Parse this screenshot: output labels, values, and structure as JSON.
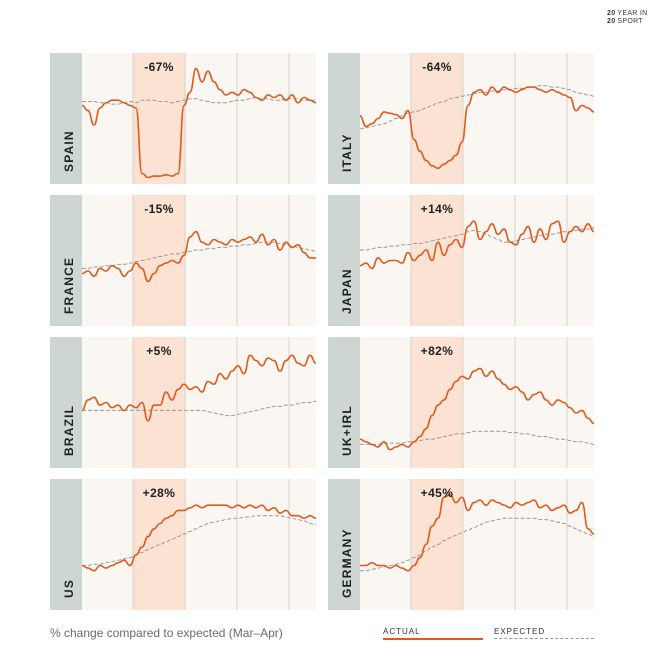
{
  "brand": {
    "line1_num": "20",
    "line1_text": "YEAR IN",
    "line2_num": "20",
    "line2_text": "SPORT"
  },
  "caption": "% change compared to expected (Mar–Apr)",
  "legend": {
    "actual": "ACTUAL",
    "expected": "EXPECTED"
  },
  "colors": {
    "actual": "#e05a1e",
    "expected": "#9a9a9a",
    "highlight": "#fbe2d3",
    "panel_bg": "#faf6f1",
    "label_bar": "#cdd6d3",
    "gridline": "#d6d1cb"
  },
  "chart_data": [
    {
      "type": "line",
      "title": "SPAIN",
      "change_label": "-67%",
      "series": [
        {
          "name": "ACTUAL",
          "values": [
            0.6,
            0.56,
            0.45,
            0.58,
            0.62,
            0.64,
            0.64,
            0.62,
            0.6,
            0.58,
            0.08,
            0.05,
            0.06,
            0.06,
            0.07,
            0.06,
            0.08,
            0.6,
            0.7,
            0.88,
            0.78,
            0.86,
            0.78,
            0.72,
            0.68,
            0.7,
            0.68,
            0.72,
            0.7,
            0.66,
            0.64,
            0.68,
            0.66,
            0.68,
            0.64,
            0.68,
            0.62,
            0.66,
            0.64,
            0.62
          ]
        },
        {
          "name": "EXPECTED",
          "values": [
            0.63,
            0.63,
            0.63,
            0.62,
            0.62,
            0.61,
            0.61,
            0.62,
            0.63,
            0.62,
            0.64,
            0.64,
            0.64,
            0.63,
            0.63,
            0.62,
            0.63,
            0.64,
            0.65,
            0.65,
            0.64,
            0.63,
            0.62,
            0.62,
            0.62,
            0.63,
            0.64,
            0.64,
            0.65,
            0.66,
            0.65,
            0.65,
            0.64,
            0.64,
            0.65,
            0.65,
            0.65,
            0.64,
            0.64,
            0.64
          ]
        }
      ]
    },
    {
      "type": "line",
      "title": "ITALY",
      "change_label": "-64%",
      "series": [
        {
          "name": "ACTUAL",
          "values": [
            0.52,
            0.44,
            0.46,
            0.5,
            0.55,
            0.54,
            0.53,
            0.5,
            0.56,
            0.34,
            0.25,
            0.18,
            0.14,
            0.12,
            0.15,
            0.18,
            0.22,
            0.32,
            0.6,
            0.7,
            0.72,
            0.68,
            0.74,
            0.7,
            0.74,
            0.72,
            0.7,
            0.72,
            0.74,
            0.74,
            0.72,
            0.7,
            0.72,
            0.7,
            0.68,
            0.66,
            0.56,
            0.6,
            0.58,
            0.55
          ]
        },
        {
          "name": "EXPECTED",
          "values": [
            0.42,
            0.43,
            0.44,
            0.45,
            0.46,
            0.48,
            0.5,
            0.52,
            0.54,
            0.55,
            0.56,
            0.58,
            0.6,
            0.62,
            0.63,
            0.65,
            0.66,
            0.67,
            0.68,
            0.69,
            0.7,
            0.7,
            0.71,
            0.71,
            0.72,
            0.72,
            0.73,
            0.73,
            0.74,
            0.74,
            0.75,
            0.75,
            0.74,
            0.74,
            0.73,
            0.72,
            0.7,
            0.69,
            0.68,
            0.67
          ]
        }
      ]
    },
    {
      "type": "line",
      "title": "FRANCE",
      "change_label": "-15%",
      "series": [
        {
          "name": "ACTUAL",
          "values": [
            0.4,
            0.42,
            0.38,
            0.44,
            0.42,
            0.46,
            0.44,
            0.38,
            0.42,
            0.48,
            0.44,
            0.34,
            0.4,
            0.46,
            0.48,
            0.5,
            0.48,
            0.54,
            0.68,
            0.72,
            0.64,
            0.62,
            0.66,
            0.64,
            0.62,
            0.66,
            0.64,
            0.66,
            0.68,
            0.64,
            0.7,
            0.62,
            0.66,
            0.58,
            0.64,
            0.6,
            0.62,
            0.56,
            0.52,
            0.52
          ]
        },
        {
          "name": "EXPECTED",
          "values": [
            0.44,
            0.44,
            0.45,
            0.45,
            0.46,
            0.46,
            0.47,
            0.47,
            0.48,
            0.49,
            0.5,
            0.51,
            0.52,
            0.53,
            0.54,
            0.55,
            0.55,
            0.56,
            0.57,
            0.58,
            0.58,
            0.59,
            0.59,
            0.6,
            0.6,
            0.61,
            0.61,
            0.62,
            0.62,
            0.63,
            0.64,
            0.64,
            0.64,
            0.63,
            0.62,
            0.61,
            0.6,
            0.59,
            0.58,
            0.57
          ]
        }
      ]
    },
    {
      "type": "line",
      "title": "JAPAN",
      "change_label": "+14%",
      "series": [
        {
          "name": "ACTUAL",
          "values": [
            0.46,
            0.48,
            0.44,
            0.52,
            0.48,
            0.5,
            0.5,
            0.48,
            0.56,
            0.5,
            0.54,
            0.58,
            0.5,
            0.64,
            0.54,
            0.62,
            0.66,
            0.6,
            0.76,
            0.8,
            0.66,
            0.72,
            0.78,
            0.7,
            0.74,
            0.64,
            0.62,
            0.7,
            0.76,
            0.64,
            0.74,
            0.66,
            0.78,
            0.8,
            0.64,
            0.72,
            0.76,
            0.72,
            0.78,
            0.72
          ]
        },
        {
          "name": "EXPECTED",
          "values": [
            0.58,
            0.58,
            0.59,
            0.6,
            0.6,
            0.61,
            0.61,
            0.62,
            0.62,
            0.63,
            0.63,
            0.64,
            0.65,
            0.66,
            0.67,
            0.68,
            0.69,
            0.7,
            0.72,
            0.73,
            0.72,
            0.7,
            0.68,
            0.66,
            0.64,
            0.64,
            0.65,
            0.66,
            0.67,
            0.68,
            0.69,
            0.7,
            0.7,
            0.71,
            0.72,
            0.72,
            0.73,
            0.74,
            0.74,
            0.75
          ]
        }
      ]
    },
    {
      "type": "line",
      "title": "BRAZIL",
      "change_label": "+5%",
      "series": [
        {
          "name": "ACTUAL",
          "values": [
            0.44,
            0.52,
            0.54,
            0.48,
            0.5,
            0.46,
            0.48,
            0.44,
            0.48,
            0.46,
            0.5,
            0.36,
            0.48,
            0.48,
            0.58,
            0.52,
            0.6,
            0.64,
            0.6,
            0.62,
            0.58,
            0.66,
            0.64,
            0.72,
            0.68,
            0.74,
            0.78,
            0.72,
            0.86,
            0.82,
            0.78,
            0.84,
            0.82,
            0.74,
            0.82,
            0.86,
            0.8,
            0.78,
            0.86,
            0.8
          ]
        },
        {
          "name": "EXPECTED",
          "values": [
            0.44,
            0.44,
            0.44,
            0.44,
            0.44,
            0.44,
            0.44,
            0.44,
            0.44,
            0.44,
            0.44,
            0.44,
            0.44,
            0.44,
            0.44,
            0.44,
            0.44,
            0.44,
            0.44,
            0.44,
            0.44,
            0.43,
            0.42,
            0.41,
            0.4,
            0.4,
            0.41,
            0.42,
            0.43,
            0.44,
            0.45,
            0.46,
            0.47,
            0.47,
            0.48,
            0.48,
            0.49,
            0.5,
            0.5,
            0.51
          ]
        }
      ]
    },
    {
      "type": "line",
      "title": "UK+IRL",
      "change_label": "+82%",
      "series": [
        {
          "name": "ACTUAL",
          "values": [
            0.22,
            0.2,
            0.18,
            0.16,
            0.2,
            0.14,
            0.16,
            0.18,
            0.16,
            0.2,
            0.24,
            0.3,
            0.4,
            0.48,
            0.52,
            0.6,
            0.66,
            0.7,
            0.68,
            0.74,
            0.76,
            0.7,
            0.74,
            0.68,
            0.64,
            0.6,
            0.62,
            0.58,
            0.52,
            0.56,
            0.58,
            0.52,
            0.48,
            0.52,
            0.5,
            0.46,
            0.42,
            0.44,
            0.38,
            0.34
          ]
        },
        {
          "name": "EXPECTED",
          "values": [
            0.18,
            0.18,
            0.18,
            0.18,
            0.19,
            0.19,
            0.19,
            0.19,
            0.2,
            0.2,
            0.21,
            0.22,
            0.22,
            0.23,
            0.24,
            0.25,
            0.26,
            0.26,
            0.27,
            0.28,
            0.28,
            0.28,
            0.28,
            0.28,
            0.28,
            0.27,
            0.27,
            0.26,
            0.26,
            0.25,
            0.24,
            0.24,
            0.23,
            0.22,
            0.22,
            0.21,
            0.2,
            0.2,
            0.19,
            0.18
          ]
        }
      ]
    },
    {
      "type": "line",
      "title": "US",
      "change_label": "+28%",
      "series": [
        {
          "name": "ACTUAL",
          "values": [
            0.34,
            0.32,
            0.3,
            0.34,
            0.32,
            0.34,
            0.36,
            0.38,
            0.34,
            0.42,
            0.48,
            0.56,
            0.62,
            0.66,
            0.7,
            0.72,
            0.76,
            0.76,
            0.78,
            0.8,
            0.78,
            0.8,
            0.8,
            0.8,
            0.8,
            0.78,
            0.8,
            0.78,
            0.8,
            0.78,
            0.8,
            0.76,
            0.78,
            0.74,
            0.76,
            0.72,
            0.72,
            0.7,
            0.72,
            0.7
          ]
        },
        {
          "name": "EXPECTED",
          "values": [
            0.34,
            0.34,
            0.35,
            0.35,
            0.36,
            0.37,
            0.38,
            0.39,
            0.4,
            0.42,
            0.44,
            0.46,
            0.48,
            0.5,
            0.52,
            0.54,
            0.56,
            0.58,
            0.6,
            0.62,
            0.64,
            0.66,
            0.67,
            0.68,
            0.69,
            0.7,
            0.7,
            0.71,
            0.71,
            0.72,
            0.72,
            0.72,
            0.72,
            0.72,
            0.71,
            0.7,
            0.69,
            0.68,
            0.66,
            0.65
          ]
        }
      ]
    },
    {
      "type": "line",
      "title": "GERMANY",
      "change_label": "+45%",
      "series": [
        {
          "name": "ACTUAL",
          "values": [
            0.34,
            0.34,
            0.36,
            0.34,
            0.34,
            0.32,
            0.34,
            0.32,
            0.3,
            0.34,
            0.4,
            0.5,
            0.64,
            0.7,
            0.86,
            0.88,
            0.82,
            0.86,
            0.76,
            0.82,
            0.84,
            0.8,
            0.84,
            0.82,
            0.8,
            0.78,
            0.82,
            0.8,
            0.82,
            0.84,
            0.78,
            0.8,
            0.76,
            0.78,
            0.8,
            0.74,
            0.76,
            0.82,
            0.62,
            0.58
          ]
        },
        {
          "name": "EXPECTED",
          "values": [
            0.3,
            0.3,
            0.31,
            0.32,
            0.33,
            0.34,
            0.35,
            0.36,
            0.38,
            0.4,
            0.42,
            0.45,
            0.48,
            0.5,
            0.53,
            0.55,
            0.57,
            0.59,
            0.61,
            0.63,
            0.65,
            0.67,
            0.68,
            0.69,
            0.7,
            0.7,
            0.7,
            0.7,
            0.7,
            0.7,
            0.69,
            0.69,
            0.68,
            0.67,
            0.66,
            0.64,
            0.62,
            0.6,
            0.58,
            0.56
          ]
        }
      ]
    }
  ]
}
